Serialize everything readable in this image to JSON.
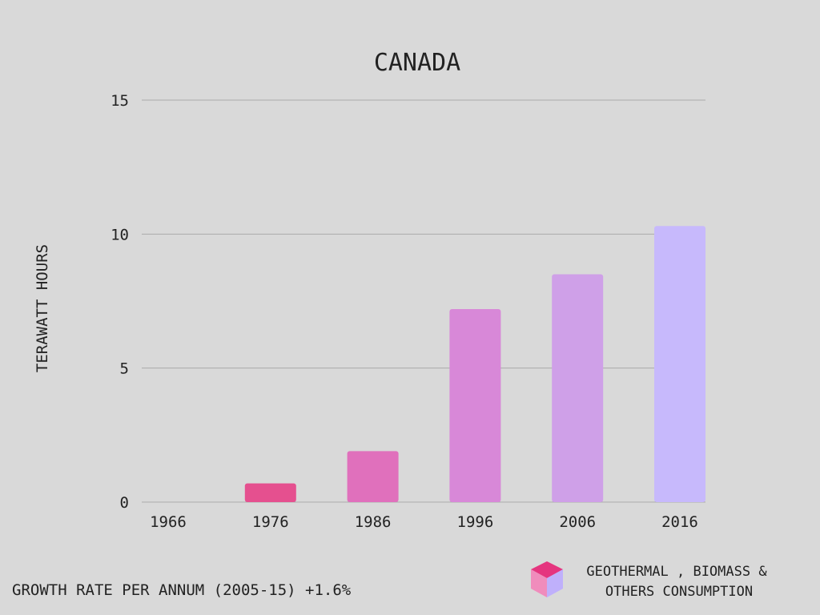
{
  "chart_data": {
    "type": "bar",
    "title": "CANADA",
    "xlabel": "",
    "ylabel": "TERAWATT HOURS",
    "ylim": [
      0,
      15
    ],
    "yticks": [
      0,
      5,
      10,
      15
    ],
    "grid": true,
    "categories": [
      "1966",
      "1976",
      "1986",
      "1996",
      "2006",
      "2016"
    ],
    "series": [
      {
        "name": "GEOTHERMAL , BIOMASS & OTHERS CONSUMPTION",
        "values": [
          0,
          0.7,
          1.9,
          7.2,
          8.5,
          10.3
        ]
      }
    ],
    "bar_colors": [
      "#e5508f",
      "#e5508f",
      "#e070bc",
      "#d888d8",
      "#cfa0e8",
      "#c7b9fc"
    ],
    "legend_position": "bottom-right",
    "legend_icon": "cube-icon"
  },
  "footer": {
    "growth_note": "GROWTH RATE PER ANNUM (2005-15) +1.6%"
  },
  "legend": {
    "line1": "GEOTHERMAL , BIOMASS &",
    "line2": "OTHERS CONSUMPTION"
  },
  "colors": {
    "background": "#d9d9d9",
    "gridline": "#aaaaaa",
    "text": "#222222"
  }
}
